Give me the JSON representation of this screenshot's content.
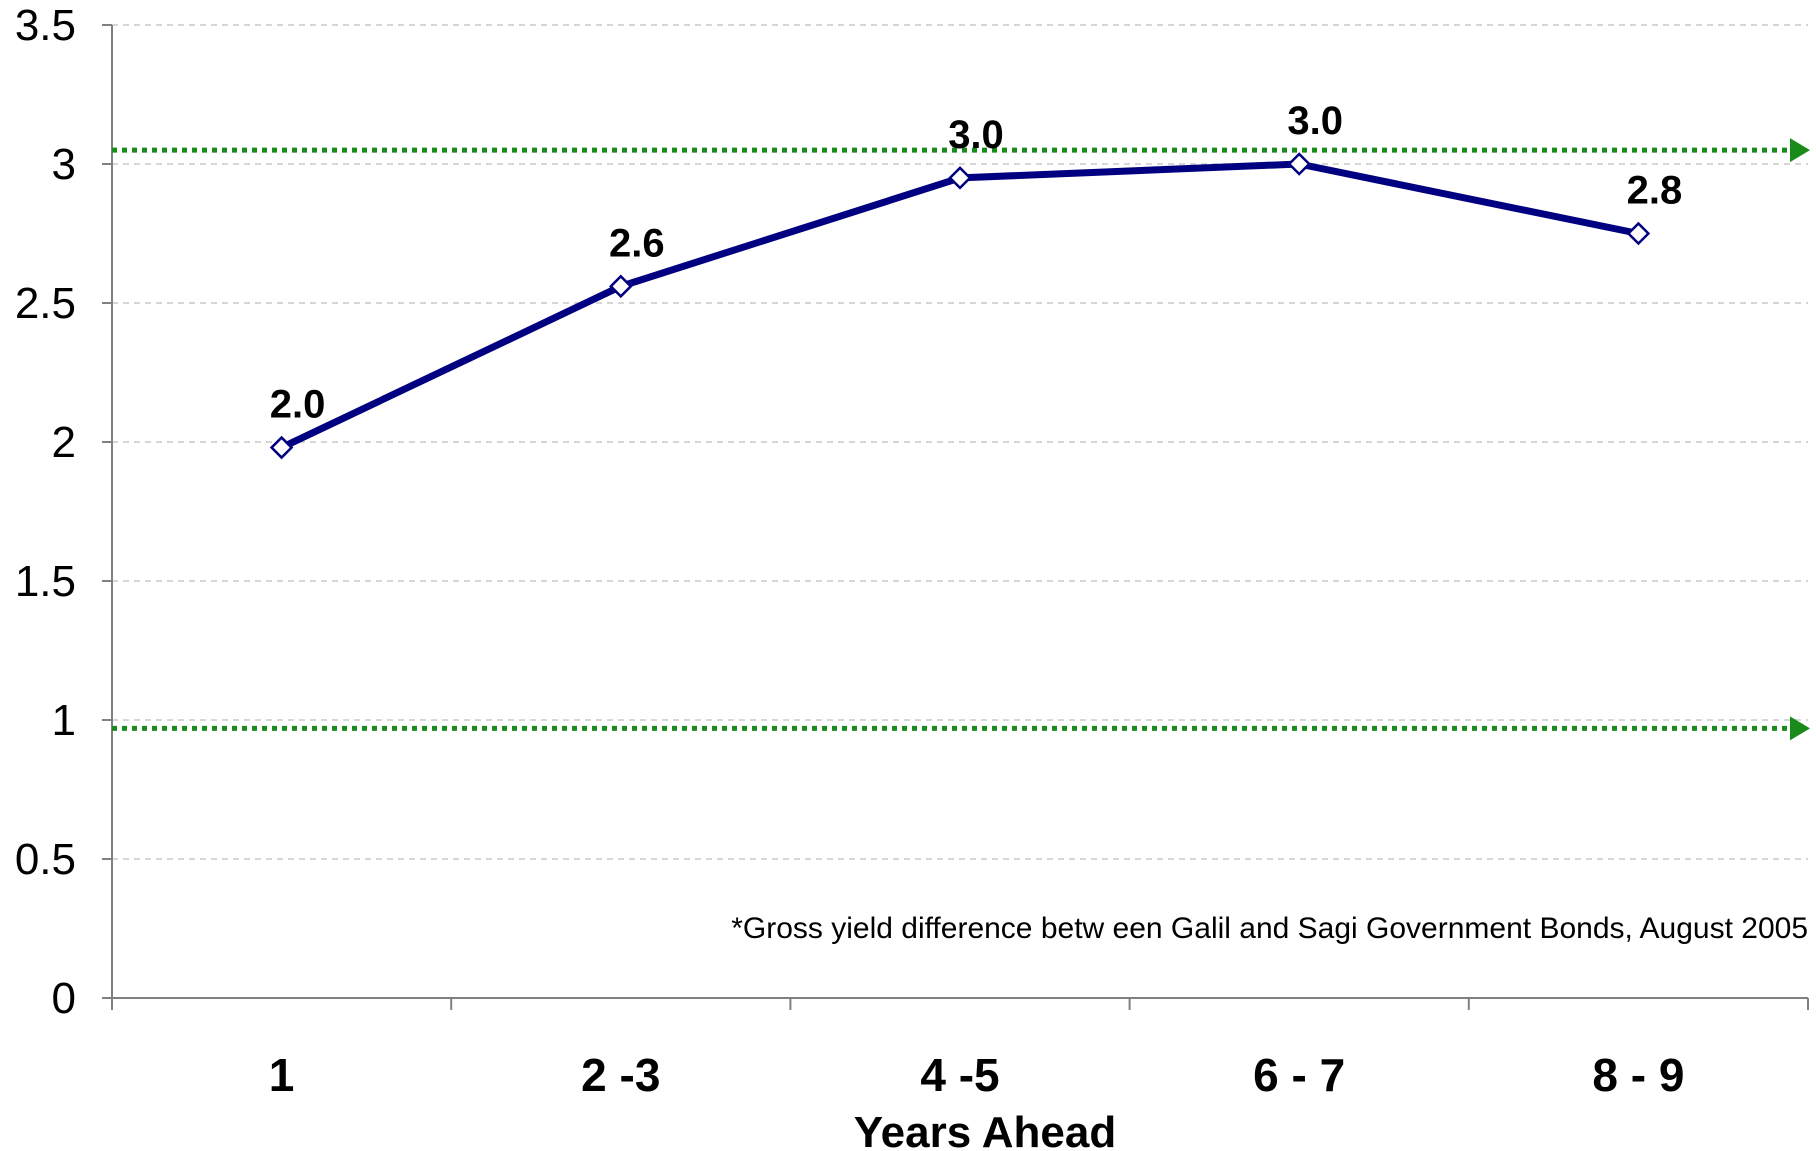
{
  "chart_data": {
    "type": "line",
    "categories": [
      "1",
      "2 -3",
      "4 -5",
      "6 - 7",
      "8 - 9"
    ],
    "series": [
      {
        "values": [
          1.98,
          2.56,
          2.95,
          3.0,
          2.75
        ],
        "data_labels": [
          "2.0",
          "2.6",
          "3.0",
          "3.0",
          "2.8"
        ],
        "color": "#000080"
      }
    ],
    "reference_lines": [
      {
        "value": 3.05,
        "color": "#1a8a1a",
        "style": "dotted-arrow"
      },
      {
        "value": 0.97,
        "color": "#1a8a1a",
        "style": "dotted-arrow"
      }
    ],
    "xlabel": "Years Ahead",
    "ylabel": "",
    "ylim": [
      0,
      3.5
    ],
    "yticks": [
      "0",
      "0.5",
      "1",
      "1.5",
      "2",
      "2.5",
      "3",
      "3.5"
    ],
    "grid": "horizontal dashed",
    "annotation": "*Gross yield difference betw een Galil and Sagi Government Bonds, August 2005"
  }
}
